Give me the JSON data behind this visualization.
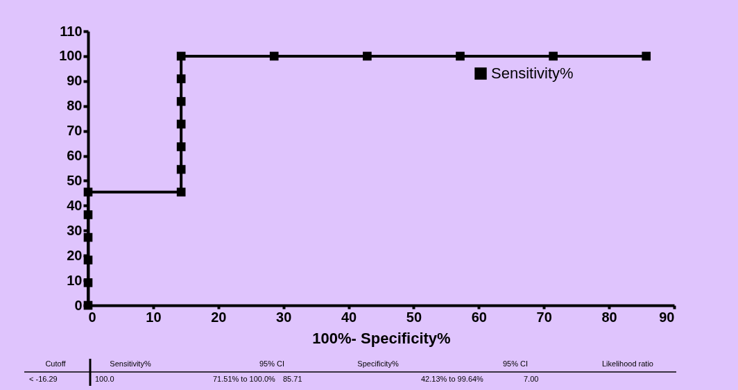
{
  "chart_data": {
    "type": "line",
    "xlabel": "100%- Specificity%",
    "x": [
      0,
      0,
      0,
      0,
      0,
      0,
      14.29,
      14.29,
      14.29,
      14.29,
      14.29,
      14.29,
      14.29,
      28.57,
      42.86,
      57.14,
      71.43,
      85.71
    ],
    "series": [
      {
        "name": "Sensitivity%",
        "color": "#000000",
        "values": [
          0,
          9.09,
          18.18,
          27.27,
          36.36,
          45.45,
          45.45,
          54.55,
          63.64,
          72.73,
          81.82,
          90.91,
          100,
          100,
          100,
          100,
          100,
          100
        ]
      }
    ],
    "xlim": [
      0,
      90
    ],
    "xticks": [
      0,
      10,
      20,
      30,
      40,
      50,
      60,
      70,
      80,
      90
    ],
    "ylim": [
      0,
      110
    ],
    "yticks": [
      0,
      10,
      20,
      30,
      40,
      50,
      60,
      70,
      80,
      90,
      100,
      110
    ],
    "marker": "square",
    "line_style": "solid",
    "grid": false,
    "legend": "top right",
    "annotations": [
      "Cutoff",
      "Sensitivity%",
      "95% CI",
      "Specificity%",
      "95% CI",
      "Likelihood ratio",
      "< -16.29",
      "100.0",
      "71.51% to 100.0%",
      "85.71",
      "42.13% to 99.64%",
      "7.00"
    ]
  }
}
